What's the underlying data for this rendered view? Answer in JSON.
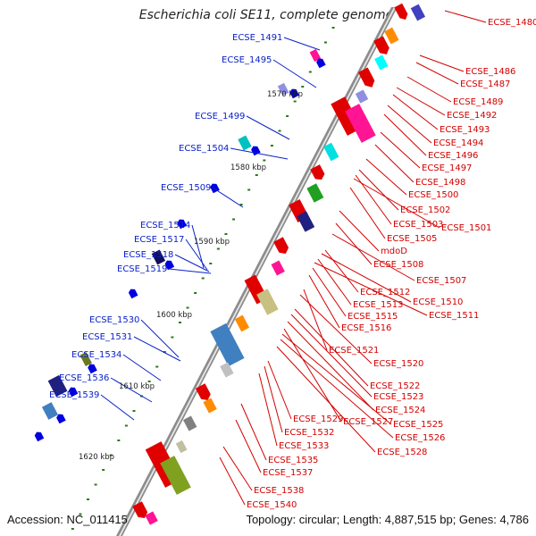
{
  "title": "Escherichia coli SE11, complete genome",
  "ruler": [
    "1570 kbp",
    "1580 kbp",
    "1590 kbp",
    "1600 kbp",
    "1610 kbp",
    "1620 kbp"
  ],
  "footer": {
    "accession": "Accession: NC_011415",
    "summary": "Topology: circular; Length: 4,887,515 bp; Genes: 4,786"
  },
  "colors": {
    "backbone": "#8c8c8c",
    "forward_label": "#0a22c8",
    "reverse_label": "#d40000",
    "tick": "#2a7a1a"
  },
  "labels_left": [
    "ECSE_1491",
    "ECSE_1495",
    "ECSE_1499",
    "ECSE_1504",
    "ECSE_1509",
    "ECSE_1514",
    "ECSE_1517",
    "ECSE_1518",
    "ECSE_1519",
    "ECSE_1530",
    "ECSE_1531",
    "ECSE_1534",
    "ECSE_1536",
    "ECSE_1539"
  ],
  "labels_right": [
    "ECSE_1480",
    "ECSE_1486",
    "ECSE_1487",
    "ECSE_1489",
    "ECSE_1492",
    "ECSE_1493",
    "ECSE_1494",
    "ECSE_1496",
    "ECSE_1497",
    "ECSE_1498",
    "ECSE_1500",
    "ECSE_1502",
    "ECSE_1503",
    "ECSE_1501",
    "ECSE_1505",
    "mdoD",
    "ECSE_1508",
    "ECSE_1507",
    "ECSE_1512",
    "ECSE_1510",
    "ECSE_1513",
    "ECSE_1511",
    "ECSE_1515",
    "ECSE_1516",
    "ECSE_1521",
    "ECSE_1520",
    "ECSE_1522",
    "ECSE_1523",
    "ECSE_1524",
    "ECSE_1529",
    "ECSE_1527",
    "ECSE_1525",
    "ECSE_1532",
    "ECSE_1526",
    "ECSE_1533",
    "ECSE_1528",
    "ECSE_1535",
    "ECSE_1537",
    "ECSE_1538",
    "ECSE_1540"
  ]
}
